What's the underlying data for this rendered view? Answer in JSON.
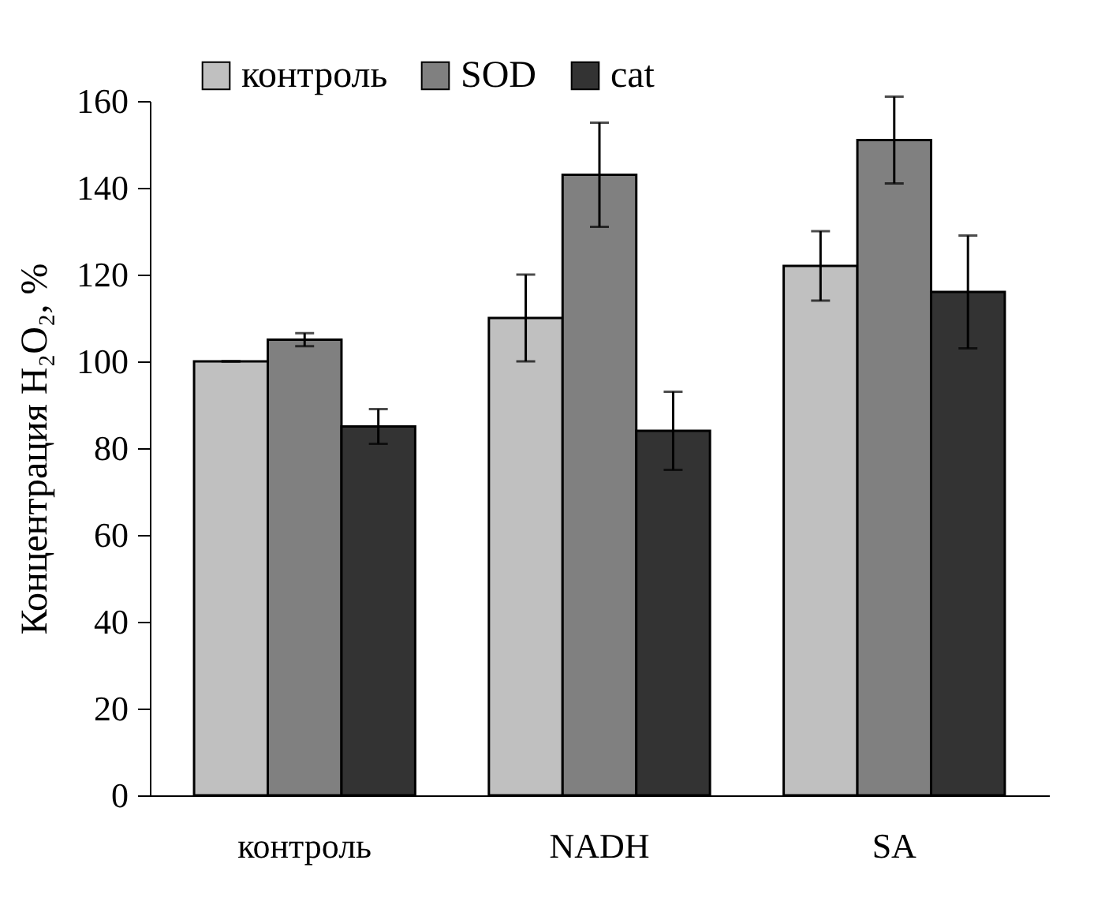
{
  "chart_data": {
    "type": "bar",
    "ylabel": "Концентрация H₂O₂, %",
    "categories": [
      "контроль",
      "NADH",
      "SA"
    ],
    "series": [
      {
        "name": "контроль",
        "color": "#c0c0c0",
        "values": [
          100,
          110,
          122
        ],
        "errors": [
          0,
          10,
          8
        ]
      },
      {
        "name": "SOD",
        "color": "#808080",
        "values": [
          105,
          143,
          151
        ],
        "errors": [
          1.5,
          12,
          10
        ]
      },
      {
        "name": "cat",
        "color": "#333333",
        "values": [
          85,
          84,
          116
        ],
        "errors": [
          4,
          9,
          13
        ]
      }
    ],
    "ylim": [
      0,
      160
    ],
    "yticks": [
      0,
      20,
      40,
      60,
      80,
      100,
      120,
      140,
      160
    ],
    "grid": false,
    "legend": "top"
  }
}
